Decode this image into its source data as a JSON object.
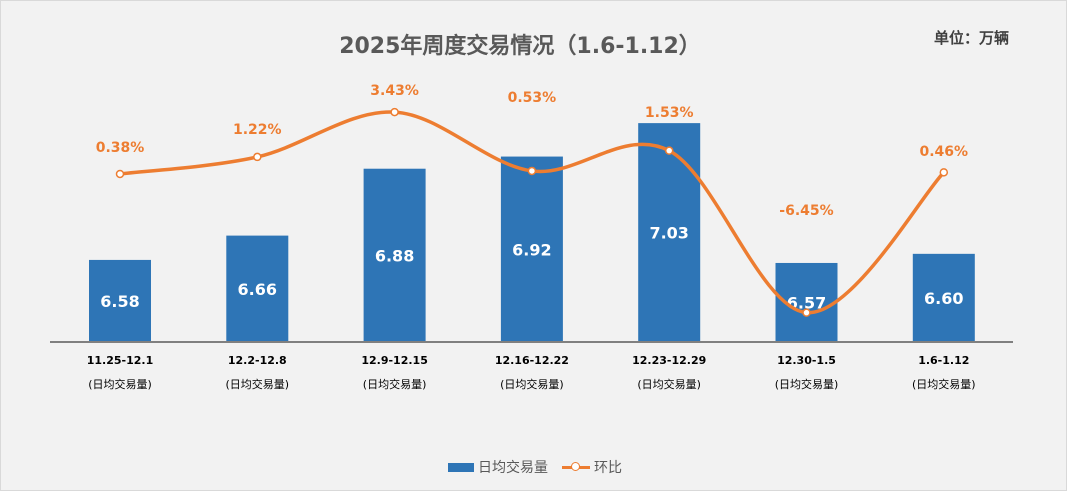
{
  "chart_data": {
    "type": "bar+line",
    "title": "2025年周度交易情况（1.6-1.12）",
    "unit_label": "单位：万辆",
    "categories": [
      "11.25-12.1",
      "12.2-12.8",
      "12.9-12.15",
      "12.16-12.22",
      "12.23-12.29",
      "12.30-1.5",
      "1.6-1.12"
    ],
    "category_sublabel": "(日均交易量)",
    "series": [
      {
        "name": "日均交易量",
        "type": "bar",
        "axis": "primary",
        "color": "#2e75b6",
        "values": [
          6.58,
          6.66,
          6.88,
          6.92,
          7.03,
          6.57,
          6.6
        ],
        "labels": [
          "6.58",
          "6.66",
          "6.88",
          "6.92",
          "7.03",
          "6.57",
          "6.60"
        ]
      },
      {
        "name": "环比",
        "type": "line",
        "axis": "secondary",
        "color": "#ed7d31",
        "values": [
          0.38,
          1.22,
          3.43,
          0.53,
          1.53,
          -6.45,
          0.46
        ],
        "labels": [
          "0.38%",
          "1.22%",
          "3.43%",
          "0.53%",
          "1.53%",
          "-6.45%",
          "0.46%"
        ]
      }
    ],
    "grid": false,
    "legend": "bottom"
  }
}
